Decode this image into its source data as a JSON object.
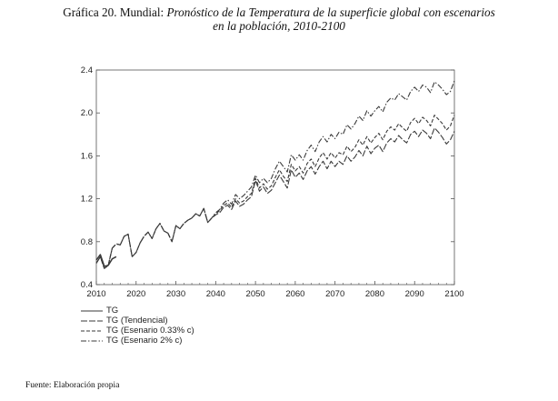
{
  "title": {
    "prefix": "Gráfica 20. Mundial: ",
    "italic_line1": "Pronóstico de la Temperatura de la superficie global con escenarios",
    "italic_line2": "en la población, 2010-2100"
  },
  "source": "Fuente: Elaboración propia",
  "colors": {
    "series_stroke": "#3a3a3a",
    "frame": "#555555"
  },
  "chart_data": {
    "type": "line",
    "xlim": [
      2010,
      2100
    ],
    "ylim": [
      0.4,
      2.4
    ],
    "x_ticks": [
      "2010",
      "2020",
      "2030",
      "2040",
      "2050",
      "2060",
      "2070",
      "2080",
      "2090",
      "2100"
    ],
    "y_ticks": [
      "0.4",
      "0.8",
      "1.2",
      "1.6",
      "2.0",
      "2.4"
    ],
    "legend_position": "bottom-left",
    "grid": false,
    "series": [
      {
        "name": "TG",
        "dash": "solid",
        "x": [
          2010,
          2011,
          2012,
          2013,
          2014,
          2015
        ],
        "y": [
          0.63,
          0.68,
          0.57,
          0.58,
          0.64,
          0.66
        ]
      },
      {
        "name": "TG (Tendencial)",
        "dash": "long-dash",
        "x": [
          2010,
          2011,
          2012,
          2013,
          2014,
          2015,
          2016,
          2017,
          2018,
          2019,
          2020,
          2021,
          2022,
          2023,
          2024,
          2025,
          2026,
          2027,
          2028,
          2029,
          2030,
          2031,
          2032,
          2033,
          2034,
          2035,
          2036,
          2037,
          2038,
          2039,
          2040,
          2041,
          2042,
          2043,
          2044,
          2045,
          2046,
          2047,
          2048,
          2049,
          2050,
          2051,
          2052,
          2053,
          2054,
          2055,
          2056,
          2057,
          2058,
          2059,
          2060,
          2061,
          2062,
          2063,
          2064,
          2065,
          2066,
          2067,
          2068,
          2069,
          2070,
          2071,
          2072,
          2073,
          2074,
          2075,
          2076,
          2077,
          2078,
          2079,
          2080,
          2081,
          2082,
          2083,
          2084,
          2085,
          2086,
          2087,
          2088,
          2089,
          2090,
          2091,
          2092,
          2093,
          2094,
          2095,
          2096,
          2097,
          2098,
          2099,
          2100
        ],
        "y": [
          0.6,
          0.66,
          0.55,
          0.58,
          0.74,
          0.78,
          0.77,
          0.85,
          0.87,
          0.66,
          0.7,
          0.79,
          0.85,
          0.89,
          0.83,
          0.92,
          0.97,
          0.9,
          0.88,
          0.8,
          0.95,
          0.92,
          0.97,
          1.0,
          1.02,
          1.06,
          1.04,
          1.11,
          0.98,
          1.02,
          1.05,
          1.07,
          1.12,
          1.14,
          1.1,
          1.18,
          1.13,
          1.15,
          1.19,
          1.22,
          1.37,
          1.27,
          1.31,
          1.25,
          1.28,
          1.35,
          1.42,
          1.36,
          1.3,
          1.47,
          1.4,
          1.44,
          1.38,
          1.46,
          1.5,
          1.43,
          1.5,
          1.55,
          1.48,
          1.55,
          1.5,
          1.55,
          1.52,
          1.6,
          1.55,
          1.59,
          1.65,
          1.6,
          1.69,
          1.62,
          1.67,
          1.7,
          1.64,
          1.72,
          1.76,
          1.73,
          1.79,
          1.75,
          1.72,
          1.8,
          1.83,
          1.78,
          1.84,
          1.81,
          1.76,
          1.86,
          1.82,
          1.77,
          1.71,
          1.75,
          1.83
        ]
      },
      {
        "name": "TG (Esenario 0.33% c)",
        "dash": "dash",
        "x": [
          2010,
          2011,
          2012,
          2013,
          2014,
          2015,
          2016,
          2017,
          2018,
          2019,
          2020,
          2021,
          2022,
          2023,
          2024,
          2025,
          2026,
          2027,
          2028,
          2029,
          2030,
          2031,
          2032,
          2033,
          2034,
          2035,
          2036,
          2037,
          2038,
          2039,
          2040,
          2041,
          2042,
          2043,
          2044,
          2045,
          2046,
          2047,
          2048,
          2049,
          2050,
          2051,
          2052,
          2053,
          2054,
          2055,
          2056,
          2057,
          2058,
          2059,
          2060,
          2061,
          2062,
          2063,
          2064,
          2065,
          2066,
          2067,
          2068,
          2069,
          2070,
          2071,
          2072,
          2073,
          2074,
          2075,
          2076,
          2077,
          2078,
          2079,
          2080,
          2081,
          2082,
          2083,
          2084,
          2085,
          2086,
          2087,
          2088,
          2089,
          2090,
          2091,
          2092,
          2093,
          2094,
          2095,
          2096,
          2097,
          2098,
          2099,
          2100
        ],
        "y": [
          0.6,
          0.66,
          0.55,
          0.58,
          0.74,
          0.78,
          0.77,
          0.85,
          0.87,
          0.66,
          0.7,
          0.79,
          0.85,
          0.89,
          0.83,
          0.92,
          0.97,
          0.9,
          0.88,
          0.8,
          0.95,
          0.92,
          0.97,
          1.0,
          1.02,
          1.06,
          1.04,
          1.11,
          0.98,
          1.02,
          1.06,
          1.09,
          1.14,
          1.16,
          1.12,
          1.2,
          1.16,
          1.18,
          1.22,
          1.25,
          1.39,
          1.3,
          1.34,
          1.29,
          1.32,
          1.4,
          1.47,
          1.41,
          1.36,
          1.52,
          1.46,
          1.5,
          1.44,
          1.53,
          1.57,
          1.5,
          1.58,
          1.63,
          1.57,
          1.63,
          1.58,
          1.63,
          1.61,
          1.69,
          1.64,
          1.68,
          1.75,
          1.7,
          1.78,
          1.72,
          1.77,
          1.81,
          1.75,
          1.83,
          1.87,
          1.84,
          1.9,
          1.86,
          1.83,
          1.91,
          1.95,
          1.9,
          1.96,
          1.93,
          1.88,
          1.98,
          1.94,
          1.9,
          1.84,
          1.88,
          1.98
        ]
      },
      {
        "name": "TG (Esenario 2% c)",
        "dash": "dash-dot",
        "x": [
          2010,
          2011,
          2012,
          2013,
          2014,
          2015,
          2016,
          2017,
          2018,
          2019,
          2020,
          2021,
          2022,
          2023,
          2024,
          2025,
          2026,
          2027,
          2028,
          2029,
          2030,
          2031,
          2032,
          2033,
          2034,
          2035,
          2036,
          2037,
          2038,
          2039,
          2040,
          2041,
          2042,
          2043,
          2044,
          2045,
          2046,
          2047,
          2048,
          2049,
          2050,
          2051,
          2052,
          2053,
          2054,
          2055,
          2056,
          2057,
          2058,
          2059,
          2060,
          2061,
          2062,
          2063,
          2064,
          2065,
          2066,
          2067,
          2068,
          2069,
          2070,
          2071,
          2072,
          2073,
          2074,
          2075,
          2076,
          2077,
          2078,
          2079,
          2080,
          2081,
          2082,
          2083,
          2084,
          2085,
          2086,
          2087,
          2088,
          2089,
          2090,
          2091,
          2092,
          2093,
          2094,
          2095,
          2096,
          2097,
          2098,
          2099,
          2100
        ],
        "y": [
          0.6,
          0.66,
          0.55,
          0.58,
          0.74,
          0.78,
          0.77,
          0.85,
          0.87,
          0.66,
          0.7,
          0.79,
          0.85,
          0.89,
          0.83,
          0.92,
          0.97,
          0.9,
          0.88,
          0.8,
          0.95,
          0.92,
          0.97,
          1.0,
          1.02,
          1.06,
          1.04,
          1.11,
          0.98,
          1.02,
          1.07,
          1.1,
          1.16,
          1.19,
          1.15,
          1.24,
          1.2,
          1.23,
          1.27,
          1.31,
          1.42,
          1.35,
          1.39,
          1.35,
          1.39,
          1.48,
          1.55,
          1.5,
          1.45,
          1.61,
          1.56,
          1.61,
          1.56,
          1.65,
          1.7,
          1.64,
          1.73,
          1.78,
          1.73,
          1.8,
          1.76,
          1.82,
          1.8,
          1.89,
          1.85,
          1.9,
          1.97,
          1.93,
          2.02,
          1.97,
          2.02,
          2.06,
          2.01,
          2.1,
          2.14,
          2.12,
          2.18,
          2.15,
          2.12,
          2.2,
          2.24,
          2.2,
          2.26,
          2.24,
          2.19,
          2.29,
          2.26,
          2.22,
          2.17,
          2.2,
          2.3
        ]
      }
    ]
  }
}
